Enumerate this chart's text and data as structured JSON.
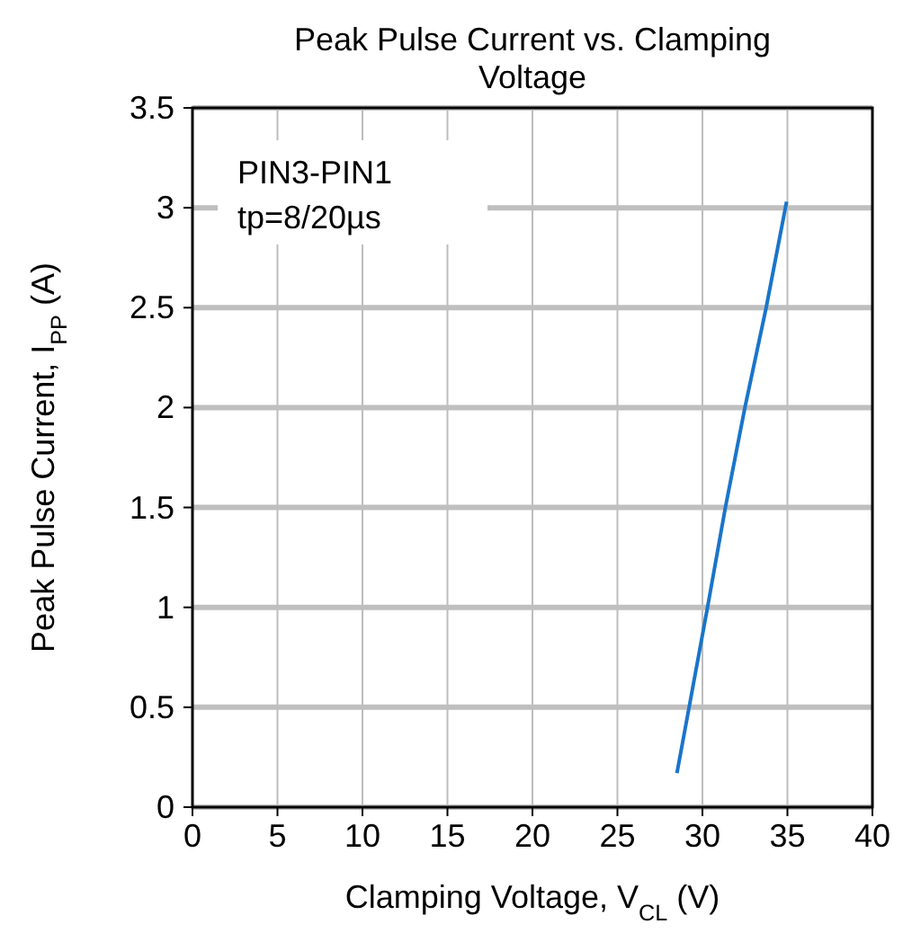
{
  "chart_data": {
    "type": "line",
    "title": "Peak Pulse Current vs. Clamping Voltage",
    "xlabel": "Clamping Voltage, V$_{CL}$ (V)",
    "ylabel": "Peak Pulse Current, I$_{PP}$ (A)",
    "x": [
      28.5,
      30.3,
      31.35,
      32.5,
      33.75,
      34.95
    ],
    "series": [
      {
        "color": "#1a75c9",
        "values": [
          0.17,
          1.0,
          1.5,
          2.0,
          2.5,
          3.03
        ]
      }
    ],
    "xlim": [
      0,
      40
    ],
    "xticks": [
      0,
      5,
      10,
      15,
      20,
      25,
      30,
      35,
      40
    ],
    "ylim": [
      0,
      3.5
    ],
    "yticks": [
      0,
      0.5,
      1,
      1.5,
      2,
      2.5,
      3,
      3.5
    ],
    "grid": true,
    "marker": "none",
    "line_style": "solid",
    "annotations": [
      "PIN3-PIN1",
      "tp=8/20µs"
    ]
  }
}
